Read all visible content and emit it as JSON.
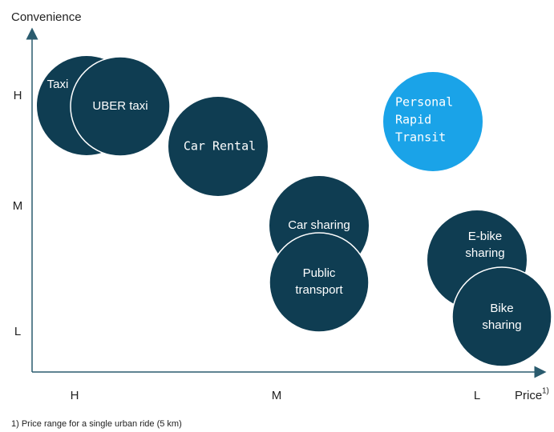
{
  "y_axis": {
    "title": "Convenience",
    "ticks": [
      "H",
      "M",
      "L"
    ]
  },
  "x_axis": {
    "title": "Price",
    "title_note": "1)",
    "ticks": [
      "H",
      "M",
      "L"
    ]
  },
  "nodes": [
    {
      "lines": [
        "Taxi"
      ]
    },
    {
      "lines": [
        "UBER taxi"
      ]
    },
    {
      "lines": [
        "Car Rental"
      ]
    },
    {
      "lines": [
        "Personal",
        "Rapid",
        "Transit"
      ]
    },
    {
      "lines": [
        "Car sharing"
      ]
    },
    {
      "lines": [
        "Public",
        "transport"
      ]
    },
    {
      "lines": [
        "E-bike",
        "sharing"
      ]
    },
    {
      "lines": [
        "Bike",
        "sharing"
      ]
    }
  ],
  "footnote": "1) Price range for a single urban ride (5 km)"
}
